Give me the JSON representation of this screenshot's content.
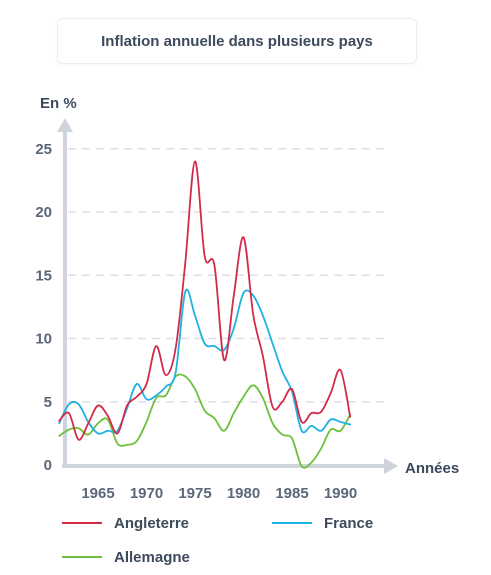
{
  "chart_data": {
    "type": "line",
    "title": "Inflation annuelle dans plusieurs pays",
    "xlabel": "Années",
    "ylabel": "En %",
    "xlim": [
      1961,
      1993
    ],
    "ylim": [
      0,
      25
    ],
    "yticks": [
      0,
      5,
      10,
      15,
      20,
      25
    ],
    "xticks": [
      1965,
      1970,
      1975,
      1980,
      1985,
      1990
    ],
    "grid": true,
    "legend_position": "bottom",
    "series": [
      {
        "name": "Angleterre",
        "color": "#d42a4a",
        "x": [
          1961,
          1962,
          1963,
          1964,
          1965,
          1966,
          1967,
          1968,
          1969,
          1970,
          1971,
          1972,
          1973,
          1974,
          1975,
          1976,
          1977,
          1978,
          1979,
          1980,
          1981,
          1982,
          1983,
          1984,
          1985,
          1986,
          1987,
          1988,
          1989,
          1990,
          1991
        ],
        "y": [
          3.5,
          4.1,
          2.0,
          3.3,
          4.7,
          3.9,
          2.5,
          4.7,
          5.4,
          6.4,
          9.4,
          7.1,
          9.2,
          16.0,
          24.0,
          16.5,
          15.8,
          8.3,
          13.4,
          18.0,
          11.9,
          8.6,
          4.6,
          5.0,
          6.0,
          3.4,
          4.1,
          4.2,
          5.7,
          7.5,
          3.8
        ]
      },
      {
        "name": "France",
        "color": "#1db2e2",
        "x": [
          1961,
          1962,
          1963,
          1964,
          1965,
          1966,
          1967,
          1968,
          1969,
          1970,
          1971,
          1972,
          1973,
          1974,
          1975,
          1976,
          1977,
          1978,
          1979,
          1980,
          1981,
          1982,
          1983,
          1984,
          1985,
          1986,
          1987,
          1988,
          1989,
          1990,
          1991
        ],
        "y": [
          3.3,
          4.8,
          4.8,
          3.4,
          2.5,
          2.7,
          2.7,
          4.5,
          6.4,
          5.2,
          5.5,
          6.2,
          7.3,
          13.7,
          11.8,
          9.6,
          9.4,
          9.1,
          10.8,
          13.6,
          13.4,
          11.8,
          9.6,
          7.4,
          5.8,
          2.7,
          3.1,
          2.7,
          3.6,
          3.4,
          3.2
        ]
      },
      {
        "name": "Allemagne",
        "color": "#6dc13a",
        "x": [
          1961,
          1962,
          1963,
          1964,
          1965,
          1966,
          1967,
          1968,
          1969,
          1970,
          1971,
          1972,
          1973,
          1974,
          1975,
          1976,
          1977,
          1978,
          1979,
          1980,
          1981,
          1982,
          1983,
          1984,
          1985,
          1986,
          1987,
          1988,
          1989,
          1990,
          1991
        ],
        "y": [
          2.3,
          2.8,
          2.9,
          2.4,
          3.3,
          3.6,
          1.7,
          1.6,
          1.9,
          3.4,
          5.3,
          5.5,
          7.0,
          7.0,
          6.0,
          4.3,
          3.7,
          2.7,
          4.1,
          5.4,
          6.3,
          5.3,
          3.3,
          2.4,
          2.1,
          -0.1,
          0.2,
          1.3,
          2.8,
          2.7,
          4.0
        ]
      }
    ]
  }
}
